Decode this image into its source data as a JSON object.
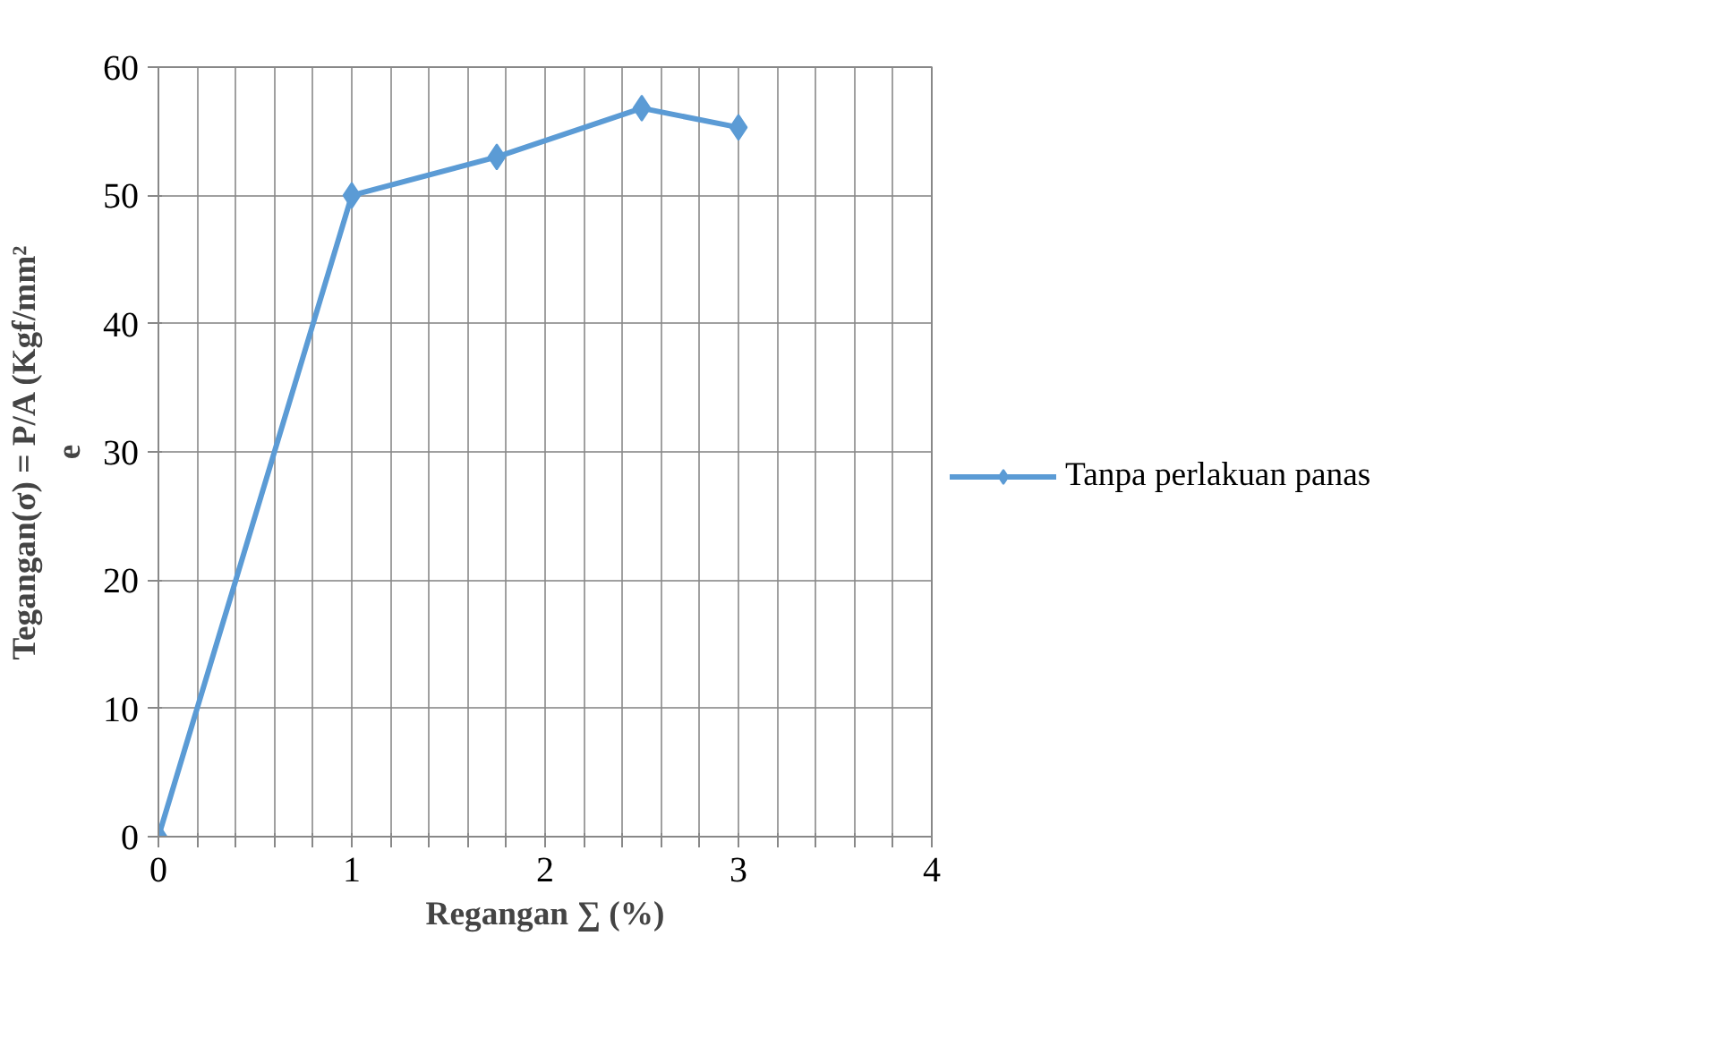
{
  "chart_data": {
    "type": "line",
    "xlabel": "Regangan ∑ (%)",
    "ylabel": "Tegangan(σ) = P/A (Kgf/mm²\ne",
    "x": [
      0,
      1,
      1.75,
      2.5,
      3
    ],
    "series": [
      {
        "name": "Tanpa perlakuan panas",
        "color": "#5b9bd5",
        "values": [
          0,
          50,
          53,
          56.8,
          55.3
        ]
      }
    ],
    "xlim": [
      0,
      4
    ],
    "xticks": [
      0,
      {
        "value": 0.2,
        "label": null
      },
      {
        "value": 0.4,
        "label": null
      },
      {
        "value": 0.6,
        "label": null
      },
      {
        "value": 0.8,
        "label": null
      },
      1,
      {
        "value": 1.2,
        "label": null
      },
      {
        "value": 1.4,
        "label": null
      },
      {
        "value": 1.6,
        "label": null
      },
      {
        "value": 1.8,
        "label": null
      },
      2,
      {
        "value": 2.2,
        "label": null
      },
      {
        "value": 2.4,
        "label": null
      },
      {
        "value": 2.6,
        "label": null
      },
      {
        "value": 2.8,
        "label": null
      },
      3,
      {
        "value": 3.2,
        "label": null
      },
      {
        "value": 3.4,
        "label": null
      },
      {
        "value": 3.6,
        "label": null
      },
      {
        "value": 3.8,
        "label": null
      },
      4
    ],
    "ylim": [
      0,
      60
    ],
    "yticks": [
      0,
      10,
      20,
      30,
      40,
      50,
      60
    ],
    "grid": true,
    "legend": "right",
    "marker": "diamond",
    "line_style": "solid"
  }
}
